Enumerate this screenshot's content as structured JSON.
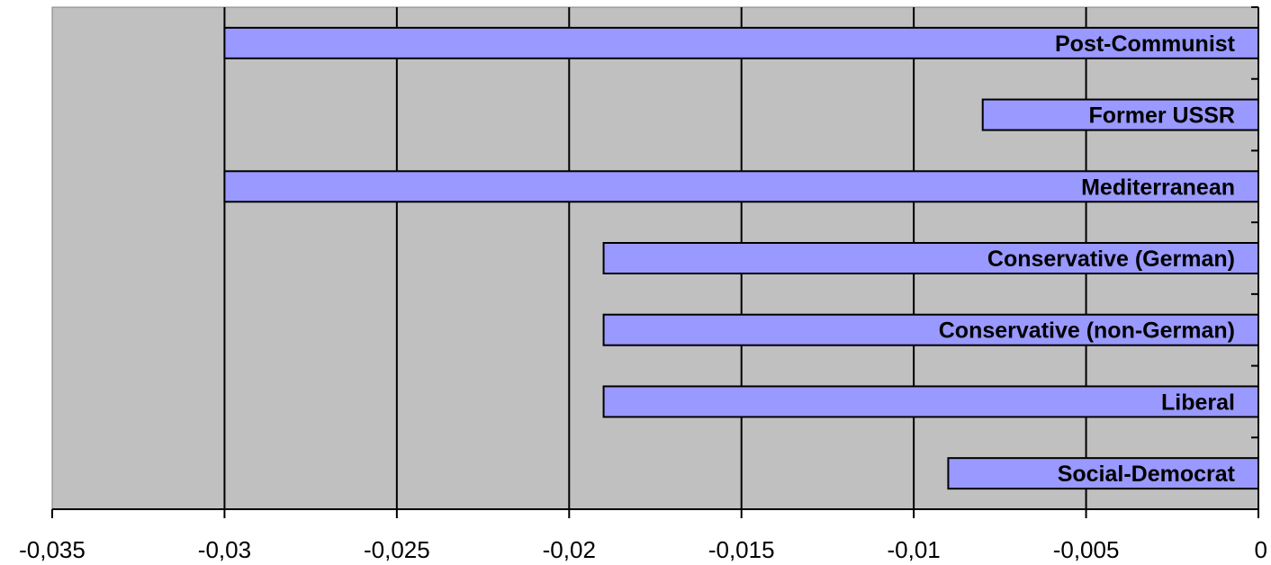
{
  "chart_data": {
    "type": "bar",
    "orientation": "horizontal",
    "categories": [
      "Post-Communist",
      "Former USSR",
      "Mediterranean",
      "Conservative (German)",
      "Conservative (non-German)",
      "Liberal",
      "Social-Democrat"
    ],
    "values": [
      -0.03,
      -0.008,
      -0.03,
      -0.019,
      -0.019,
      -0.019,
      -0.009
    ],
    "xlim": [
      -0.035,
      0
    ],
    "xticks": [
      "-0,035",
      "-0,03",
      "-0,025",
      "-0,02",
      "-0,015",
      "-0,01",
      "-0,005",
      "0"
    ],
    "grid": "vertical",
    "legend": "none",
    "colors": {
      "plot_background": "#c0c0c0",
      "bar_fill": "#9999ff",
      "bar_stroke": "#000000",
      "gridline": "#000000"
    }
  }
}
